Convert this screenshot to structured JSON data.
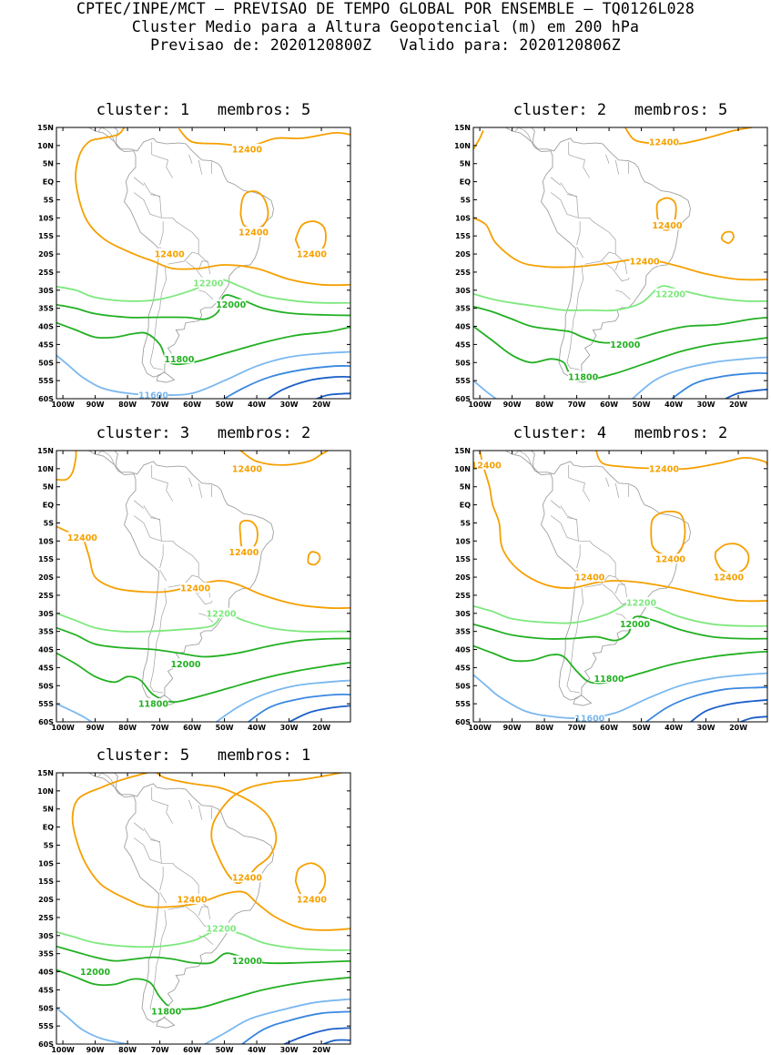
{
  "header": {
    "line1": "CPTEC/INPE/MCT – PREVISAO DE TEMPO GLOBAL POR ENSEMBLE – TQ0126L028",
    "line2": "Cluster Medio para a Altura Geopotencial (m) em 200 hPa",
    "line3": "Previsao de: 2020120800Z   Valido para: 2020120806Z"
  },
  "panel_title_template": {
    "cluster_word": "cluster:",
    "members_word": "membros:"
  },
  "axes": {
    "lat_labels": [
      "15N",
      "10N",
      "5N",
      "EQ",
      "5S",
      "10S",
      "15S",
      "20S",
      "25S",
      "30S",
      "35S",
      "40S",
      "45S",
      "50S",
      "55S",
      "60S"
    ],
    "lon_labels": [
      "100W",
      "90W",
      "80W",
      "70W",
      "60W",
      "50W",
      "40W",
      "30W",
      "20W"
    ]
  },
  "colors": {
    "c12400": "#f5a000",
    "c12200": "#7ee87e",
    "c12000": "#22b022",
    "c11800": "#22b022",
    "c11600": "#7ab8f0",
    "c11400": "#3a88e0",
    "c11200": "#1c5fc8",
    "coast": "#a0a0a0"
  },
  "panels": [
    {
      "cluster": "1",
      "members": "5",
      "labels": [
        {
          "text": "12400",
          "lon": -43,
          "lat": 9,
          "color": "c12400"
        },
        {
          "text": "12400",
          "lon": -41,
          "lat": -14,
          "color": "c12400"
        },
        {
          "text": "12400",
          "lon": -23,
          "lat": -20,
          "color": "c12400"
        },
        {
          "text": "12400",
          "lon": -67,
          "lat": -20,
          "color": "c12400"
        },
        {
          "text": "12200",
          "lon": -55,
          "lat": -28,
          "color": "c12200"
        },
        {
          "text": "12000",
          "lon": -48,
          "lat": -34,
          "color": "c12000"
        },
        {
          "text": "11800",
          "lon": -64,
          "lat": -49,
          "color": "c11800"
        },
        {
          "text": "11600",
          "lon": -72,
          "lat": -59,
          "color": "c11600"
        }
      ]
    },
    {
      "cluster": "2",
      "members": "5",
      "labels": [
        {
          "text": "12400",
          "lon": -43,
          "lat": 11,
          "color": "c12400"
        },
        {
          "text": "12400",
          "lon": -42,
          "lat": -12,
          "color": "c12400"
        },
        {
          "text": "12400",
          "lon": -49,
          "lat": -22,
          "color": "c12400"
        },
        {
          "text": "12200",
          "lon": -41,
          "lat": -31,
          "color": "c12200"
        },
        {
          "text": "12000",
          "lon": -55,
          "lat": -45,
          "color": "c12000"
        },
        {
          "text": "11800",
          "lon": -68,
          "lat": -54,
          "color": "c11800"
        }
      ]
    },
    {
      "cluster": "3",
      "members": "2",
      "labels": [
        {
          "text": "12400",
          "lon": -43,
          "lat": 10,
          "color": "c12400"
        },
        {
          "text": "12400",
          "lon": -94,
          "lat": -9,
          "color": "c12400"
        },
        {
          "text": "12400",
          "lon": -44,
          "lat": -13,
          "color": "c12400"
        },
        {
          "text": "12400",
          "lon": -59,
          "lat": -23,
          "color": "c12400"
        },
        {
          "text": "12200",
          "lon": -51,
          "lat": -30,
          "color": "c12200"
        },
        {
          "text": "12000",
          "lon": -62,
          "lat": -44,
          "color": "c12000"
        },
        {
          "text": "11800",
          "lon": -72,
          "lat": -55,
          "color": "c11800"
        }
      ]
    },
    {
      "cluster": "4",
      "members": "2",
      "labels": [
        {
          "text": "12400",
          "lon": -43,
          "lat": 10,
          "color": "c12400"
        },
        {
          "text": "12400",
          "lon": -98,
          "lat": 11,
          "color": "c12400"
        },
        {
          "text": "12400",
          "lon": -41,
          "lat": -15,
          "color": "c12400"
        },
        {
          "text": "12400",
          "lon": -66,
          "lat": -20,
          "color": "c12400"
        },
        {
          "text": "12400",
          "lon": -23,
          "lat": -20,
          "color": "c12400"
        },
        {
          "text": "12200",
          "lon": -50,
          "lat": -27,
          "color": "c12200"
        },
        {
          "text": "12000",
          "lon": -52,
          "lat": -33,
          "color": "c12000"
        },
        {
          "text": "11800",
          "lon": -60,
          "lat": -48,
          "color": "c11800"
        },
        {
          "text": "11600",
          "lon": -66,
          "lat": -59,
          "color": "c11600"
        }
      ]
    },
    {
      "cluster": "5",
      "members": "1",
      "labels": [
        {
          "text": "12400",
          "lon": -43,
          "lat": -14,
          "color": "c12400"
        },
        {
          "text": "12400",
          "lon": -60,
          "lat": -20,
          "color": "c12400"
        },
        {
          "text": "12400",
          "lon": -23,
          "lat": -20,
          "color": "c12400"
        },
        {
          "text": "12200",
          "lon": -51,
          "lat": -28,
          "color": "c12200"
        },
        {
          "text": "12000",
          "lon": -43,
          "lat": -37,
          "color": "c12000"
        },
        {
          "text": "12000",
          "lon": -90,
          "lat": -40,
          "color": "c12000"
        },
        {
          "text": "11800",
          "lon": -68,
          "lat": -51,
          "color": "c11800"
        }
      ]
    }
  ]
}
